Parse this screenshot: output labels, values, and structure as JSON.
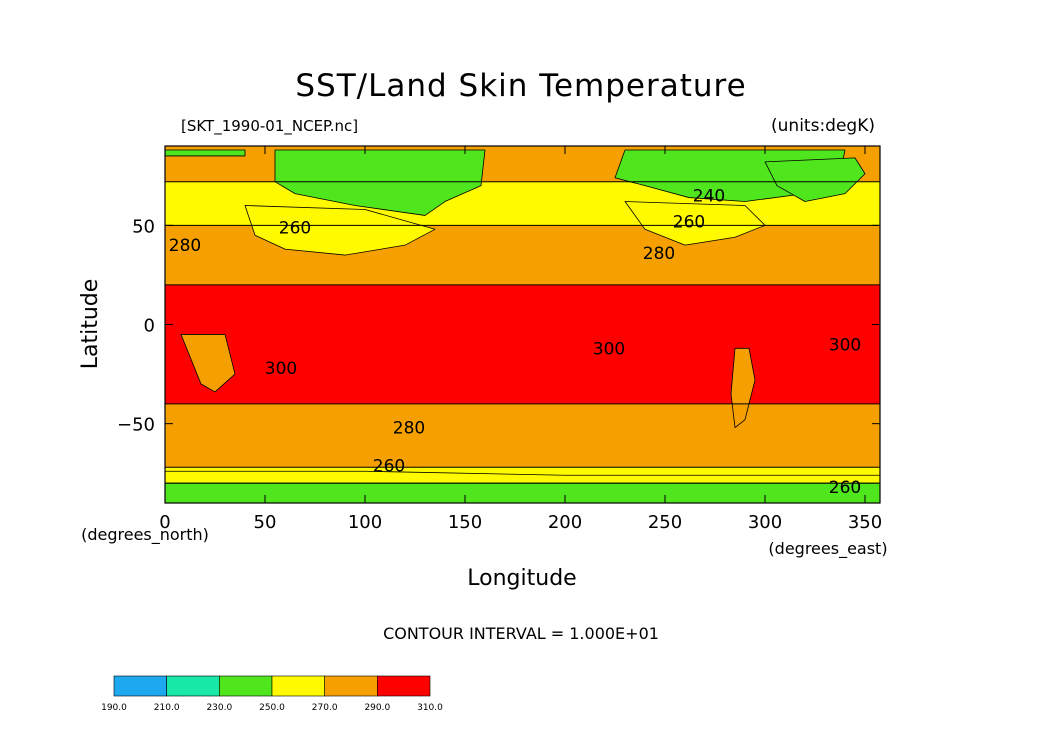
{
  "chart_data": {
    "type": "heatmap",
    "title": "SST/Land Skin Temperature",
    "source_label": "[SKT_1990-01_NCEP.nc]",
    "units_label": "(units:degK)",
    "xlabel": "Longitude",
    "ylabel": "Latitude",
    "x_unit_label": "(degrees_east)",
    "y_unit_label": "(degrees_north)",
    "xlim": [
      0,
      357.5
    ],
    "ylim": [
      -90,
      90
    ],
    "x_ticks": [
      0,
      50,
      100,
      150,
      200,
      250,
      300,
      350
    ],
    "y_ticks": [
      -50,
      0,
      50
    ],
    "contour_interval_text": "CONTOUR INTERVAL = 1.000E+01",
    "contour_labels": [
      {
        "text": "240",
        "lon": 272,
        "lat": 65
      },
      {
        "text": "260",
        "lon": 65,
        "lat": 49
      },
      {
        "text": "260",
        "lon": 262,
        "lat": 52
      },
      {
        "text": "280",
        "lon": 10,
        "lat": 40
      },
      {
        "text": "280",
        "lon": 247,
        "lat": 36
      },
      {
        "text": "300",
        "lon": 222,
        "lat": -12
      },
      {
        "text": "300",
        "lon": 58,
        "lat": -22
      },
      {
        "text": "300",
        "lon": 340,
        "lat": -10
      },
      {
        "text": "280",
        "lon": 122,
        "lat": -52
      },
      {
        "text": "260",
        "lon": 112,
        "lat": -71
      },
      {
        "text": "260",
        "lon": 340,
        "lat": -82
      }
    ],
    "colorbar": {
      "levels": [
        "190.0",
        "210.0",
        "230.0",
        "250.0",
        "270.0",
        "290.0",
        "310.0"
      ],
      "colors": [
        "#1ea8f0",
        "#18e8a8",
        "#50e61e",
        "#fffa00",
        "#f5a000",
        "#ff0000"
      ]
    },
    "bands": [
      {
        "lat_top": 90,
        "lat_bottom": 72,
        "color": "#f5a000"
      },
      {
        "lat_top": 72,
        "lat_bottom": 50,
        "color": "#fffa00"
      },
      {
        "lat_top": 50,
        "lat_bottom": 20,
        "color": "#f5a000"
      },
      {
        "lat_top": 20,
        "lat_bottom": -40,
        "color": "#ff0000"
      },
      {
        "lat_top": -40,
        "lat_bottom": -72,
        "color": "#f5a000"
      },
      {
        "lat_top": -72,
        "lat_bottom": -80,
        "color": "#fffa00"
      },
      {
        "lat_top": -80,
        "lat_bottom": -90,
        "color": "#50e61e"
      }
    ],
    "regions": [
      {
        "name": "eurasia-cold",
        "color": "#50e61e",
        "points": [
          [
            55,
            88
          ],
          [
            160,
            88
          ],
          [
            158,
            70
          ],
          [
            140,
            62
          ],
          [
            130,
            55
          ],
          [
            95,
            60
          ],
          [
            65,
            66
          ],
          [
            55,
            72
          ]
        ]
      },
      {
        "name": "north-america-cold",
        "color": "#50e61e",
        "points": [
          [
            230,
            88
          ],
          [
            340,
            88
          ],
          [
            338,
            78
          ],
          [
            320,
            66
          ],
          [
            290,
            62
          ],
          [
            262,
            64
          ],
          [
            240,
            70
          ],
          [
            225,
            74
          ]
        ]
      },
      {
        "name": "greenland",
        "color": "#50e61e",
        "points": [
          [
            300,
            82
          ],
          [
            345,
            84
          ],
          [
            350,
            76
          ],
          [
            340,
            66
          ],
          [
            320,
            62
          ],
          [
            306,
            70
          ]
        ]
      },
      {
        "name": "arctic-strip",
        "color": "#50e61e",
        "points": [
          [
            0,
            88
          ],
          [
            40,
            88
          ],
          [
            40,
            85
          ],
          [
            0,
            85
          ]
        ]
      },
      {
        "name": "asia-cool",
        "color": "#fffa00",
        "points": [
          [
            40,
            60
          ],
          [
            100,
            58
          ],
          [
            135,
            48
          ],
          [
            120,
            40
          ],
          [
            90,
            35
          ],
          [
            60,
            38
          ],
          [
            45,
            45
          ]
        ]
      },
      {
        "name": "north-america-cool",
        "color": "#fffa00",
        "points": [
          [
            230,
            62
          ],
          [
            290,
            60
          ],
          [
            300,
            50
          ],
          [
            285,
            44
          ],
          [
            260,
            40
          ],
          [
            240,
            48
          ]
        ]
      },
      {
        "name": "africa-warm",
        "color": "#f5a000",
        "points": [
          [
            8,
            -5
          ],
          [
            30,
            -5
          ],
          [
            35,
            -25
          ],
          [
            25,
            -34
          ],
          [
            18,
            -30
          ],
          [
            12,
            -15
          ]
        ]
      },
      {
        "name": "south-america-warm",
        "color": "#f5a000",
        "points": [
          [
            285,
            -12
          ],
          [
            292,
            -12
          ],
          [
            295,
            -28
          ],
          [
            290,
            -48
          ],
          [
            285,
            -52
          ],
          [
            283,
            -35
          ]
        ]
      },
      {
        "name": "antarctic-yellow",
        "color": "#fffa00",
        "points": [
          [
            0,
            -80
          ],
          [
            357.5,
            -80
          ],
          [
            357.5,
            -76
          ],
          [
            200,
            -76
          ],
          [
            100,
            -74
          ],
          [
            0,
            -74
          ]
        ]
      }
    ]
  }
}
